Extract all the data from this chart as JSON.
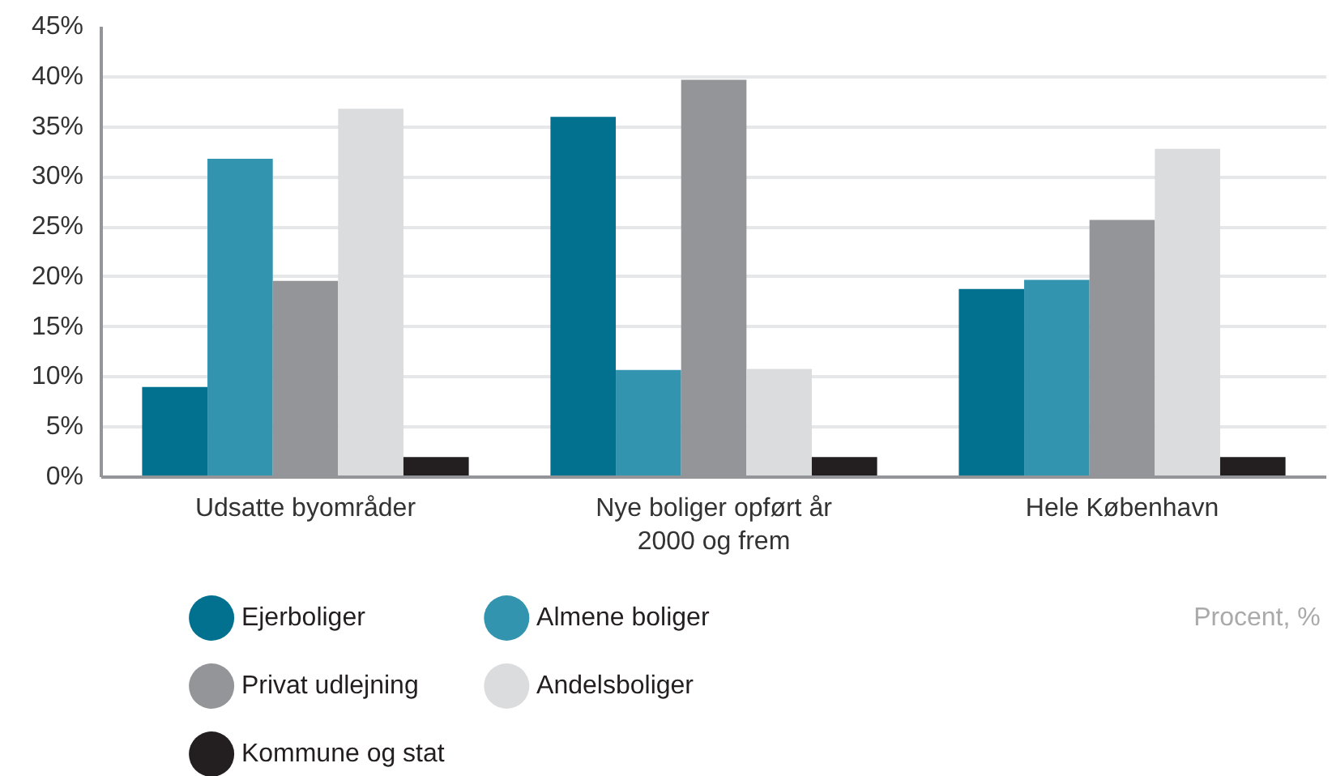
{
  "chart_data": {
    "type": "bar",
    "categories": [
      "Udsatte byområder",
      "Nye boliger opført år 2000 og frem",
      "Hele København"
    ],
    "series": [
      {
        "name": "Ejerboliger",
        "color": "#02718f",
        "values": [
          9,
          36,
          18.8
        ]
      },
      {
        "name": "Almene boliger",
        "color": "#3394b0",
        "values": [
          31.8,
          10.7,
          19.7
        ]
      },
      {
        "name": "Privat udlejning",
        "color": "#939598",
        "values": [
          19.6,
          39.7,
          25.7
        ]
      },
      {
        "name": "Andelsboliger",
        "color": "#dbdcde",
        "values": [
          36.8,
          10.8,
          32.8
        ]
      },
      {
        "name": "Kommune og stat",
        "color": "#231f20",
        "values": [
          2,
          2,
          2
        ]
      }
    ],
    "ylim": [
      0,
      45
    ],
    "yticks": [
      {
        "value": 0,
        "label": "0%"
      },
      {
        "value": 5,
        "label": "5%"
      },
      {
        "value": 10,
        "label": "10%"
      },
      {
        "value": 15,
        "label": "15%"
      },
      {
        "value": 20,
        "label": "20%"
      },
      {
        "value": 25,
        "label": "25%"
      },
      {
        "value": 30,
        "label": "30%"
      },
      {
        "value": 35,
        "label": "35%"
      },
      {
        "value": 40,
        "label": "40%"
      },
      {
        "value": 45,
        "label": "45%"
      }
    ],
    "grid": "y",
    "legend": "bottom",
    "annotations": [
      "Procent, %"
    ]
  }
}
